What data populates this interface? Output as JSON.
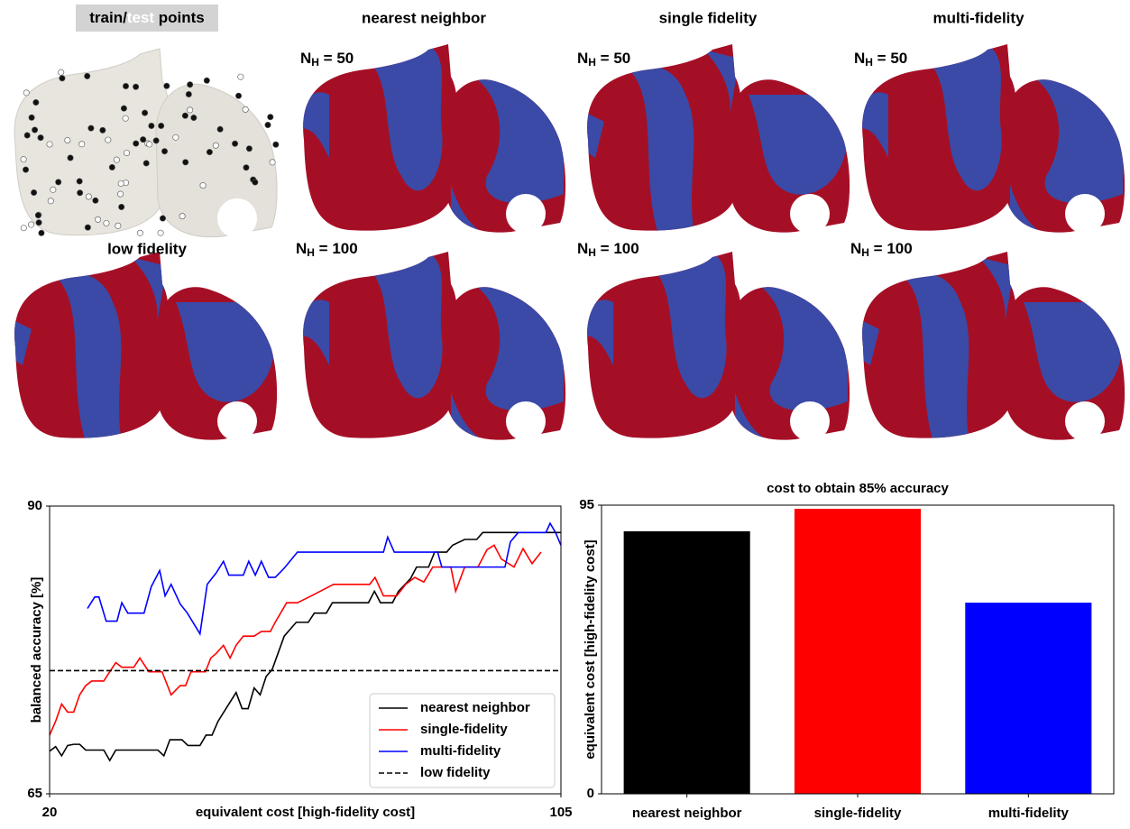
{
  "panels": {
    "train_test": [
      "train/",
      "test",
      " points"
    ],
    "titles": [
      "nearest neighbor",
      "single fidelity",
      "multi-fidelity"
    ],
    "low_fidelity": "low fidelity",
    "rows": [
      {
        "symbol": "N",
        "subscript": "H",
        "text": " = 50"
      },
      {
        "symbol": "N",
        "subscript": "H",
        "text": " = 100"
      }
    ]
  },
  "chart_data": [
    {
      "type": "line",
      "xlabel": "equivalent cost [high-fidelity cost]",
      "ylabel": "balanced accuracy [%]",
      "xlim": [
        20,
        105
      ],
      "ylim": [
        65,
        90
      ],
      "xticks": [
        20,
        105
      ],
      "yticks": [
        65,
        90
      ],
      "legend": "lower right",
      "series": [
        {
          "name": "nearest neighbor",
          "color": "#000000",
          "dash": "solid",
          "x": [
            20,
            21,
            22,
            23,
            24,
            25,
            26,
            29,
            30,
            31,
            38,
            39,
            40,
            42,
            43,
            45,
            46,
            47,
            48,
            51,
            52,
            53,
            54,
            55,
            56,
            57,
            59,
            60,
            61,
            63,
            64,
            66,
            67,
            73,
            74,
            75,
            77,
            78,
            80,
            81,
            83,
            84,
            86,
            87,
            89,
            91,
            92,
            105
          ],
          "values": [
            68.7,
            69.1,
            68.3,
            69.2,
            69.3,
            69.3,
            68.8,
            68.8,
            67.9,
            68.8,
            68.8,
            68.3,
            69.7,
            69.7,
            69.2,
            69.2,
            70.1,
            70.1,
            71.3,
            73.8,
            72.4,
            72.4,
            74.2,
            73.6,
            75.2,
            75.8,
            78.7,
            79.3,
            79.9,
            79.9,
            80.7,
            80.7,
            81.6,
            81.6,
            82.6,
            81.6,
            81.6,
            82.6,
            83.7,
            84.7,
            84.7,
            86.0,
            86.0,
            86.6,
            87.1,
            87.1,
            87.7,
            87.7
          ]
        },
        {
          "name": "single-fidelity",
          "color": "#ff0000",
          "dash": "solid",
          "x": [
            20,
            21,
            22,
            23,
            24,
            25,
            26,
            27,
            29,
            30,
            31,
            32,
            34,
            35,
            36.5,
            38.7,
            40.2,
            41.7,
            42.6,
            43.5,
            45.9,
            46.8,
            47.7,
            48.9,
            50,
            51,
            52.2,
            54,
            55.2,
            56.7,
            57.5,
            59.4,
            61.2,
            63.5,
            67.2,
            73.2,
            74.1,
            75.5,
            77.7,
            79.2,
            80.7,
            82.2,
            83.7,
            86.7,
            87.5,
            89,
            91.2,
            92.7,
            93.9,
            95.1,
            97.2,
            98.7,
            100.2,
            101.7
          ],
          "values": [
            70.1,
            71.3,
            72.8,
            72.1,
            72.1,
            73.6,
            74.4,
            74.8,
            74.8,
            75.6,
            76.4,
            76.0,
            76.0,
            76.8,
            75.6,
            75.6,
            73.6,
            74.4,
            74.4,
            75.6,
            75.6,
            76.8,
            77.2,
            77.9,
            76.8,
            77.9,
            78.7,
            78.7,
            79.1,
            79.1,
            79.9,
            81.6,
            81.6,
            82.2,
            83.2,
            83.2,
            83.8,
            82.2,
            82.2,
            83.2,
            83.8,
            83.4,
            84.7,
            84.7,
            82.6,
            84.7,
            84.7,
            86.2,
            86.6,
            85.4,
            84.7,
            86.3,
            85.0,
            86.0
          ]
        },
        {
          "name": "multi-fidelity",
          "color": "#0000ff",
          "dash": "solid",
          "x": [
            26.3,
            27.5,
            28.2,
            29.4,
            31.2,
            32,
            33,
            35.7,
            36.9,
            38.3,
            39.2,
            40.2,
            41.7,
            42.9,
            45,
            46.2,
            47.7,
            48.9,
            49.8,
            52.2,
            53.1,
            54.2,
            55.2,
            56.4,
            57.5,
            59,
            61.2,
            75.5,
            76.2,
            77.3,
            84.5,
            85.2,
            95.7,
            96.6,
            97.9,
            102.5,
            103.2,
            104.1,
            105
          ],
          "values": [
            81.1,
            82.1,
            82.1,
            80.0,
            80.0,
            81.6,
            80.7,
            80.7,
            83.0,
            84.4,
            82.2,
            83.2,
            81.5,
            80.7,
            78.9,
            83.2,
            84.2,
            85.2,
            84.0,
            84.0,
            85.2,
            84.0,
            85.2,
            83.8,
            83.8,
            84.6,
            86.0,
            86.0,
            87.3,
            86.0,
            86.0,
            84.7,
            84.7,
            86.9,
            87.7,
            87.7,
            88.5,
            87.7,
            86.6
          ]
        },
        {
          "name": "low fidelity",
          "color": "#000000",
          "dash": "dashed",
          "x": [
            20,
            105
          ],
          "values": [
            75.7,
            75.7
          ]
        }
      ]
    },
    {
      "type": "bar",
      "title": "cost to obtain 85% accuracy",
      "ylabel": "equivalent cost [high-fidelity cost]",
      "categories": [
        "nearest neighbor",
        "single-fidelity",
        "multi-fidelity"
      ],
      "values": [
        86.4,
        93.8,
        62.9
      ],
      "colors": [
        "#000000",
        "#ff0000",
        "#0000ff"
      ],
      "ylim": [
        0,
        95
      ],
      "yticks": [
        0,
        95
      ]
    }
  ]
}
